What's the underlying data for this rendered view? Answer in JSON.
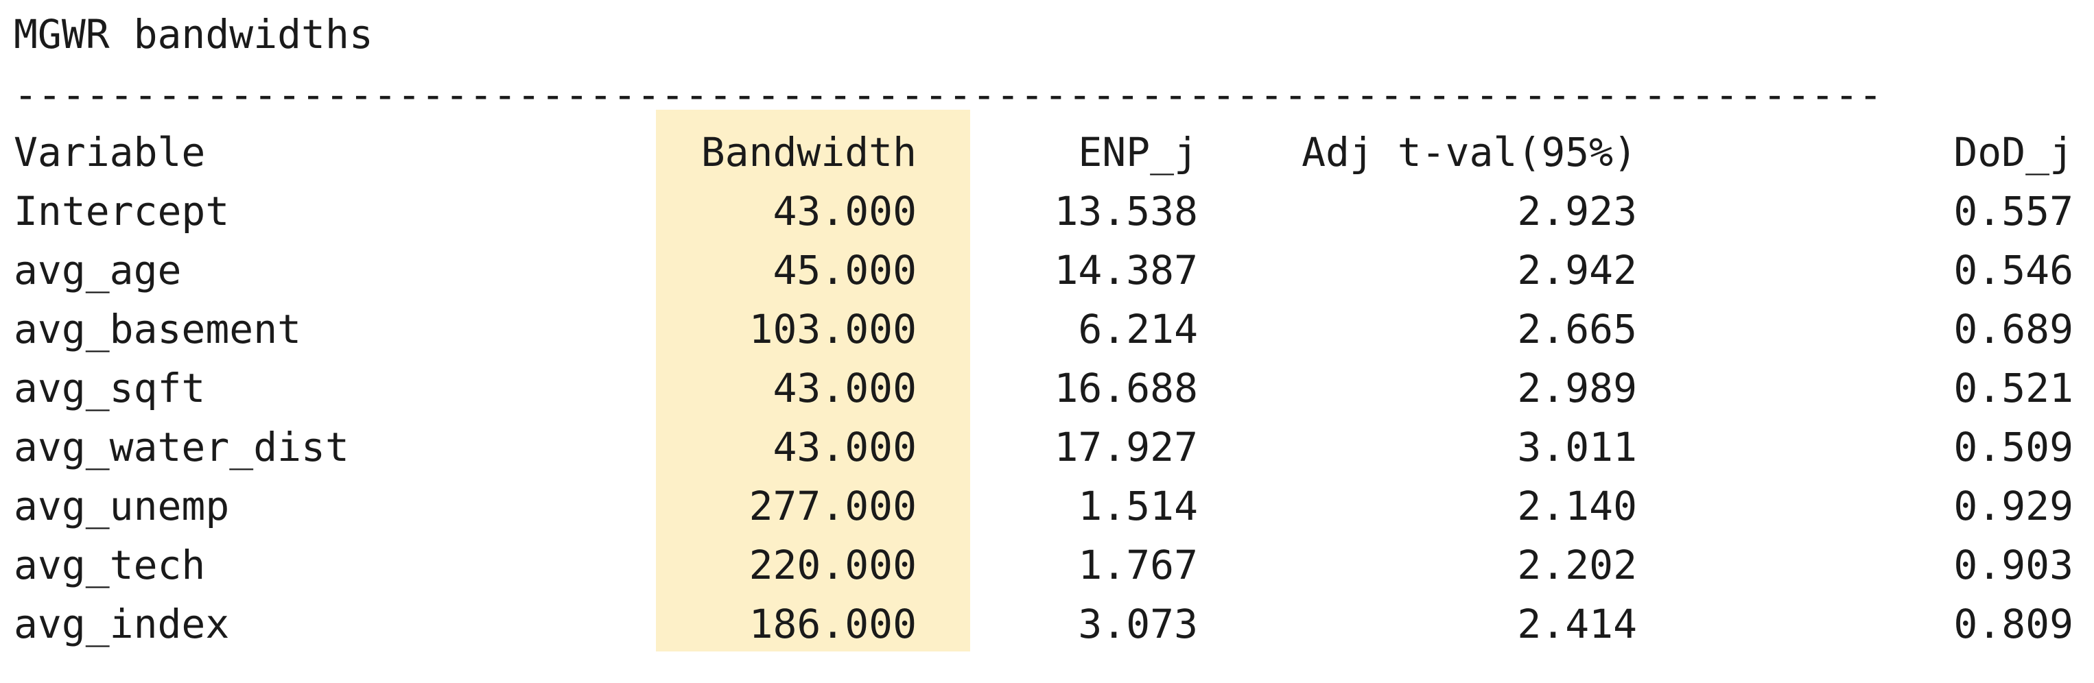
{
  "title": "MGWR bandwidths",
  "divider": "------------------------------------------------------------------------------",
  "table": {
    "headers": {
      "variable": "Variable",
      "bandwidth": "Bandwidth",
      "enp": "ENP_j",
      "adj": "Adj t-val(95%)",
      "dod": "DoD_j"
    },
    "rows": [
      {
        "variable": "Intercept",
        "bandwidth": "43.000",
        "enp": "13.538",
        "adj": "2.923",
        "dod": "0.557"
      },
      {
        "variable": "avg_age",
        "bandwidth": "45.000",
        "enp": "14.387",
        "adj": "2.942",
        "dod": "0.546"
      },
      {
        "variable": "avg_basement",
        "bandwidth": "103.000",
        "enp": "6.214",
        "adj": "2.665",
        "dod": "0.689"
      },
      {
        "variable": "avg_sqft",
        "bandwidth": "43.000",
        "enp": "16.688",
        "adj": "2.989",
        "dod": "0.521"
      },
      {
        "variable": "avg_water_dist",
        "bandwidth": "43.000",
        "enp": "17.927",
        "adj": "3.011",
        "dod": "0.509"
      },
      {
        "variable": "avg_unemp",
        "bandwidth": "277.000",
        "enp": "1.514",
        "adj": "2.140",
        "dod": "0.929"
      },
      {
        "variable": "avg_tech",
        "bandwidth": "220.000",
        "enp": "1.767",
        "adj": "2.202",
        "dod": "0.903"
      },
      {
        "variable": "avg_index",
        "bandwidth": "186.000",
        "enp": "3.073",
        "adj": "2.414",
        "dod": "0.809"
      }
    ]
  },
  "colors": {
    "highlight": "#fdf0c8",
    "text": "#1a1a1a"
  }
}
